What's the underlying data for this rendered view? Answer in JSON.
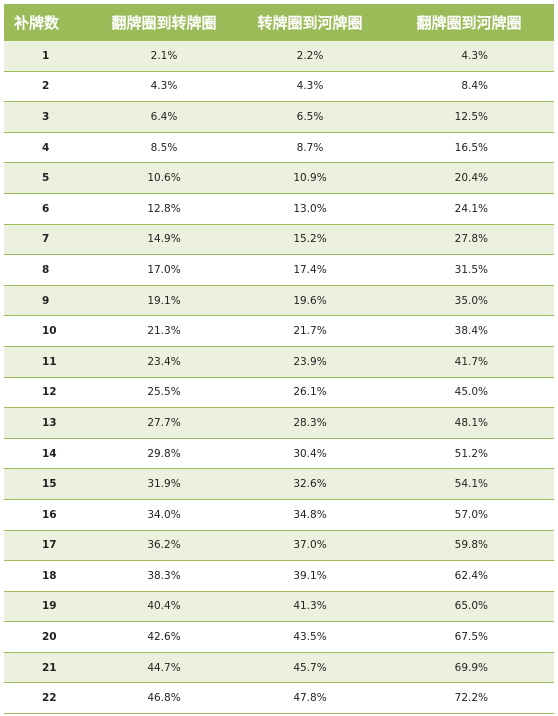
{
  "header": {
    "col1": "补牌数",
    "col2": "翻牌圈到转牌圈",
    "col3": "转牌圈到河牌圈",
    "col4": "翻牌圈到河牌圈"
  },
  "rows": [
    {
      "outs": "1",
      "flop_turn": "2.1%",
      "turn_river": "2.2%",
      "flop_river": "4.3%"
    },
    {
      "outs": "2",
      "flop_turn": "4.3%",
      "turn_river": "4.3%",
      "flop_river": "8.4%"
    },
    {
      "outs": "3",
      "flop_turn": "6.4%",
      "turn_river": "6.5%",
      "flop_river": "12.5%"
    },
    {
      "outs": "4",
      "flop_turn": "8.5%",
      "turn_river": "8.7%",
      "flop_river": "16.5%"
    },
    {
      "outs": "5",
      "flop_turn": "10.6%",
      "turn_river": "10.9%",
      "flop_river": "20.4%"
    },
    {
      "outs": "6",
      "flop_turn": "12.8%",
      "turn_river": "13.0%",
      "flop_river": "24.1%"
    },
    {
      "outs": "7",
      "flop_turn": "14.9%",
      "turn_river": "15.2%",
      "flop_river": "27.8%"
    },
    {
      "outs": "8",
      "flop_turn": "17.0%",
      "turn_river": "17.4%",
      "flop_river": "31.5%"
    },
    {
      "outs": "9",
      "flop_turn": "19.1%",
      "turn_river": "19.6%",
      "flop_river": "35.0%"
    },
    {
      "outs": "10",
      "flop_turn": "21.3%",
      "turn_river": "21.7%",
      "flop_river": "38.4%"
    },
    {
      "outs": "11",
      "flop_turn": "23.4%",
      "turn_river": "23.9%",
      "flop_river": "41.7%"
    },
    {
      "outs": "12",
      "flop_turn": "25.5%",
      "turn_river": "26.1%",
      "flop_river": "45.0%"
    },
    {
      "outs": "13",
      "flop_turn": "27.7%",
      "turn_river": "28.3%",
      "flop_river": "48.1%"
    },
    {
      "outs": "14",
      "flop_turn": "29.8%",
      "turn_river": "30.4%",
      "flop_river": "51.2%"
    },
    {
      "outs": "15",
      "flop_turn": "31.9%",
      "turn_river": "32.6%",
      "flop_river": "54.1%"
    },
    {
      "outs": "16",
      "flop_turn": "34.0%",
      "turn_river": "34.8%",
      "flop_river": "57.0%"
    },
    {
      "outs": "17",
      "flop_turn": "36.2%",
      "turn_river": "37.0%",
      "flop_river": "59.8%"
    },
    {
      "outs": "18",
      "flop_turn": "38.3%",
      "turn_river": "39.1%",
      "flop_river": "62.4%"
    },
    {
      "outs": "19",
      "flop_turn": "40.4%",
      "turn_river": "41.3%",
      "flop_river": "65.0%"
    },
    {
      "outs": "20",
      "flop_turn": "42.6%",
      "turn_river": "43.5%",
      "flop_river": "67.5%"
    },
    {
      "outs": "21",
      "flop_turn": "44.7%",
      "turn_river": "45.7%",
      "flop_river": "69.9%"
    },
    {
      "outs": "22",
      "flop_turn": "46.8%",
      "turn_river": "47.8%",
      "flop_river": "72.2%"
    }
  ],
  "colors": {
    "header_bg": "#9bbb59",
    "row_alt_bg": "#ebf1de",
    "border": "#9bbb59"
  }
}
